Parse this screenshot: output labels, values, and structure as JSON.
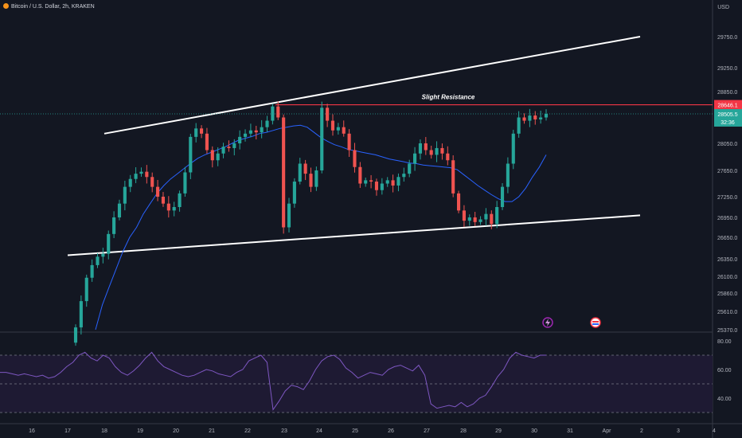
{
  "header": {
    "symbol_line": "Bitcoin / U.S. Dollar, 2h, KRAKEN",
    "currency": "USD"
  },
  "colors": {
    "background": "#131722",
    "up": "#26a69a",
    "down": "#ef5350",
    "ma": "#2962ff",
    "trendline": "#ffffff",
    "resistance": "#f23645",
    "rsi_line": "#7e57c2",
    "rsi_band": "#1e1a33"
  },
  "chart_data": [
    {
      "type": "candlestick",
      "title": "",
      "x": [
        "16",
        "17",
        "18",
        "19",
        "20",
        "21",
        "22",
        "23",
        "24",
        "25",
        "26",
        "27",
        "28",
        "29",
        "30",
        "31",
        "Apr",
        "2",
        "3",
        "4"
      ],
      "y_ticks": [
        29750.0,
        29250.0,
        28850.0,
        28050.0,
        27650.0,
        27250.0,
        26950.0,
        26650.0,
        26350.0,
        26100.0,
        25860.0,
        25610.0,
        25370.0
      ],
      "y_tick_labels": [
        "29750.0",
        "29250.0",
        "28850.0",
        "28050.0",
        "27650.0",
        "27250.0",
        "26950.0",
        "26650.0",
        "26350.0",
        "26100.0",
        "25860.0",
        "25610.0",
        "25370.0"
      ],
      "resistance": {
        "value": 28646.1,
        "label": "28646.1",
        "annotation": "Slight Resistance"
      },
      "last_price": {
        "value": 28505.5,
        "label": "28505.5",
        "countdown": "32:36"
      },
      "candles_close": [
        25400,
        25750,
        26080,
        26260,
        26380,
        26420,
        26700,
        26950,
        27150,
        27400,
        27520,
        27600,
        27630,
        27550,
        27400,
        27250,
        27150,
        27050,
        27100,
        27300,
        27620,
        28150,
        28280,
        28200,
        27950,
        27800,
        27900,
        28000,
        27980,
        28050,
        28150,
        28200,
        28250,
        28220,
        28300,
        28400,
        28620,
        28450,
        26800,
        27150,
        27480,
        27750,
        27600,
        27400,
        27650,
        28600,
        28400,
        28250,
        28300,
        28200,
        27950,
        27700,
        27450,
        27500,
        27480,
        27350,
        27450,
        27500,
        27420,
        27550,
        27600,
        27750,
        27900,
        28050,
        27950,
        27880,
        27980,
        27900,
        27800,
        27300,
        27050,
        26900,
        26950,
        26880,
        26920,
        27000,
        26850,
        27100,
        27400,
        27750,
        28200,
        28450,
        28400,
        28480,
        28420,
        28450,
        28505.5
      ],
      "ma_series": [
        25370,
        25700,
        25950,
        26200,
        26450,
        26650,
        26800,
        27000,
        27150,
        27300,
        27420,
        27520,
        27600,
        27680,
        27760,
        27830,
        27880,
        27920,
        27960,
        28000,
        28050,
        28100,
        28130,
        28160,
        28200,
        28220,
        28250,
        28280,
        28300,
        28320,
        28330,
        28300,
        28220,
        28140,
        28080,
        28030,
        28000,
        27960,
        27940,
        27920,
        27900,
        27880,
        27850,
        27820,
        27800,
        27780,
        27760,
        27750,
        27730,
        27720,
        27710,
        27700,
        27690,
        27660,
        27580,
        27500,
        27420,
        27350,
        27280,
        27220,
        27180,
        27180,
        27250,
        27380,
        27550,
        27700,
        27880
      ],
      "trendlines": [
        {
          "from": [
            "18",
            28200
          ],
          "to": [
            "Apr",
            29750
          ]
        },
        {
          "from": [
            "17",
            26400
          ],
          "to": [
            "Apr",
            26980
          ]
        }
      ],
      "indicator": {
        "name": "RSI",
        "ticks": [
          80.0,
          60.0,
          40.0
        ],
        "tick_labels": [
          "80.00",
          "60.00",
          "40.00"
        ],
        "band": [
          30,
          70
        ],
        "values": [
          58,
          58,
          57,
          56,
          57,
          56,
          55,
          56,
          54,
          55,
          58,
          62,
          65,
          70,
          72,
          68,
          66,
          70,
          68,
          62,
          58,
          56,
          59,
          63,
          68,
          72,
          66,
          62,
          60,
          58,
          56,
          55,
          56,
          58,
          60,
          59,
          57,
          56,
          55,
          58,
          60,
          66,
          68,
          70,
          65,
          32,
          38,
          45,
          49,
          48,
          46,
          52,
          60,
          66,
          69,
          70,
          67,
          61,
          58,
          54,
          56,
          58,
          57,
          56,
          60,
          62,
          63,
          61,
          59,
          63,
          56,
          36,
          33,
          34,
          35,
          34,
          37,
          34,
          36,
          40,
          42,
          48,
          55,
          60,
          68,
          72,
          70,
          69,
          68,
          70,
          70
        ]
      }
    }
  ]
}
